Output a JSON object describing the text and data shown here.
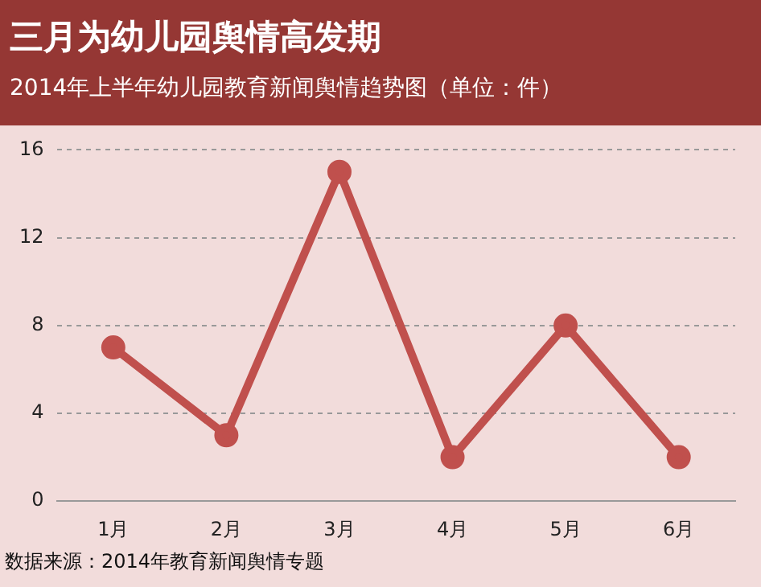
{
  "chart_data": {
    "type": "line",
    "title": "三月为幼儿园舆情高发期",
    "subtitle": "2014年上半年幼儿园教育新闻舆情趋势图（单位：件）",
    "categories": [
      "1月",
      "2月",
      "3月",
      "4月",
      "5月",
      "6月"
    ],
    "series": [
      {
        "color": "#c0504d",
        "values": [
          7,
          3,
          15,
          2,
          8,
          2
        ]
      }
    ],
    "ylim": [
      0,
      16
    ],
    "yticks": [
      0,
      4,
      8,
      12,
      16
    ],
    "grid": "y",
    "legend": false,
    "marker": "circle",
    "line_style": "solid",
    "annotations": [
      "数据来源：2014年教育新闻舆情专题"
    ]
  }
}
